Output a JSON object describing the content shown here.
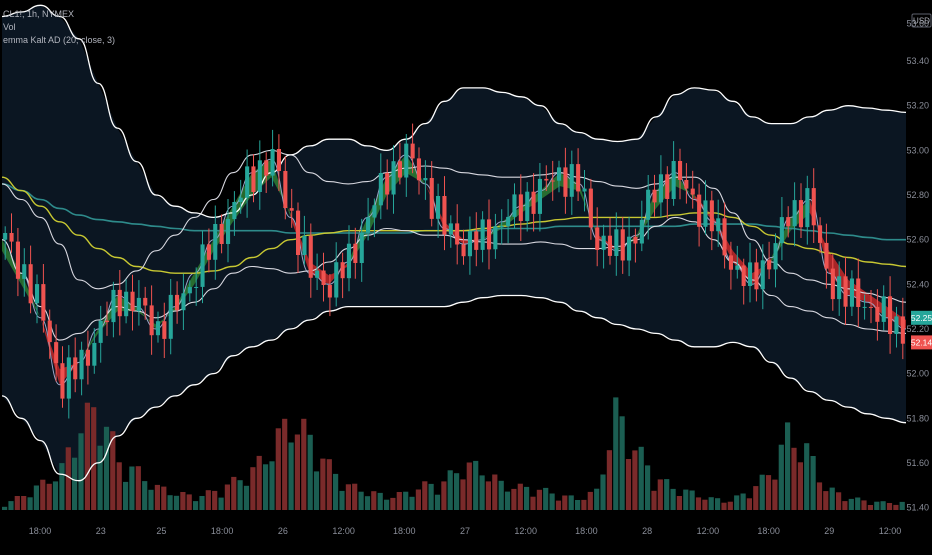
{
  "chart_data": {
    "type": "candlestick",
    "legend": {
      "symbol": "CL1!, 1h, NYMEX",
      "volume": "Vol",
      "indicator": "emma Kalt AD (20, close, 3)"
    },
    "y_axis": {
      "unit_label": "USD",
      "ticks": [
        "53.60",
        "53.40",
        "53.20",
        "53.00",
        "52.80",
        "52.60",
        "52.40",
        "52.20",
        "52.00",
        "51.80",
        "51.60",
        "51.40"
      ],
      "range": [
        51.38,
        53.62
      ]
    },
    "price_badges": [
      {
        "value": "52.25",
        "color": "#26a69a"
      },
      {
        "value": "52.14",
        "color": "#ef5350"
      }
    ],
    "x_axis": {
      "ticks": [
        "18:00",
        "23",
        "25",
        "18:00",
        "26",
        "12:00",
        "18:00",
        "27",
        "12:00",
        "18:00",
        "28",
        "12:00",
        "18:00",
        "29",
        "12:00"
      ]
    },
    "grid": false,
    "colors": {
      "up": "#26a69a",
      "down": "#ef5350",
      "band": "#ffffff",
      "ma_yellow": "#c8c832",
      "ma_teal": "#2e8b8b",
      "ribbon_up": "#2e7d32",
      "ribbon_down": "#c62828"
    },
    "series": [
      {
        "name": "upper band",
        "values": [
          53.6,
          53.62,
          53.65,
          53.6,
          53.5,
          53.3,
          53.1,
          52.95,
          52.8,
          52.75,
          52.72,
          52.7,
          52.72,
          52.8,
          52.9,
          52.98,
          53.02,
          53.05,
          53.05,
          53.02,
          53.0,
          53.05,
          53.12,
          53.22,
          53.28,
          53.28,
          53.26,
          53.24,
          53.2,
          53.12,
          53.08,
          53.05,
          53.04,
          53.05,
          53.15,
          53.25,
          53.28,
          53.27,
          53.22,
          53.15,
          53.12,
          53.12,
          53.15,
          53.18,
          53.2,
          53.19,
          53.18,
          53.17
        ]
      },
      {
        "name": "lower band",
        "values": [
          51.9,
          51.8,
          51.7,
          51.55,
          51.52,
          51.6,
          51.72,
          51.8,
          51.85,
          51.9,
          51.95,
          52.0,
          52.08,
          52.12,
          52.15,
          52.2,
          52.24,
          52.28,
          52.3,
          52.3,
          52.3,
          52.3,
          52.3,
          52.3,
          52.32,
          52.34,
          52.35,
          52.35,
          52.34,
          52.32,
          52.28,
          52.25,
          52.22,
          52.2,
          52.18,
          52.15,
          52.12,
          52.12,
          52.14,
          52.12,
          52.05,
          51.98,
          51.92,
          51.88,
          51.85,
          51.82,
          51.8,
          51.78
        ]
      },
      {
        "name": "inner upper",
        "values": [
          52.85,
          52.78,
          52.7,
          52.58,
          52.42,
          52.38,
          52.4,
          52.46,
          52.55,
          52.62,
          52.7,
          52.78,
          52.9,
          52.98,
          53.0,
          52.98,
          52.9,
          52.86,
          52.85,
          52.86,
          52.9,
          52.92,
          52.93,
          52.92,
          52.9,
          52.89,
          52.88,
          52.88,
          52.89,
          52.9,
          52.88,
          52.86,
          52.84,
          52.83,
          52.85,
          52.88,
          52.88,
          52.83,
          52.72,
          52.6,
          52.5,
          52.45,
          52.42,
          52.4,
          52.38,
          52.36,
          52.34,
          52.32
        ]
      },
      {
        "name": "inner lower",
        "values": [
          52.6,
          52.45,
          52.3,
          52.15,
          52.18,
          52.24,
          52.3,
          52.28,
          52.25,
          52.28,
          52.32,
          52.38,
          52.45,
          52.48,
          52.47,
          52.45,
          52.46,
          52.5,
          52.56,
          52.62,
          52.65,
          52.64,
          52.62,
          52.62,
          52.6,
          52.59,
          52.58,
          52.58,
          52.59,
          52.58,
          52.56,
          52.56,
          52.57,
          52.6,
          52.66,
          52.7,
          52.68,
          52.6,
          52.5,
          52.42,
          52.35,
          52.3,
          52.28,
          52.25,
          52.22,
          52.2,
          52.19,
          52.18
        ]
      },
      {
        "name": "ma yellow",
        "values": [
          52.88,
          52.82,
          52.75,
          52.68,
          52.62,
          52.56,
          52.52,
          52.48,
          52.46,
          52.45,
          52.45,
          52.46,
          52.48,
          52.52,
          52.56,
          52.6,
          52.62,
          52.63,
          52.64,
          52.64,
          52.64,
          52.64,
          52.64,
          52.64,
          52.64,
          52.65,
          52.66,
          52.67,
          52.68,
          52.69,
          52.7,
          52.7,
          52.7,
          52.7,
          52.7,
          52.71,
          52.72,
          52.72,
          52.7,
          52.66,
          52.62,
          52.58,
          52.56,
          52.54,
          52.52,
          52.5,
          52.49,
          52.48
        ]
      },
      {
        "name": "ma teal",
        "values": [
          52.85,
          52.82,
          52.78,
          52.74,
          52.71,
          52.69,
          52.68,
          52.67,
          52.66,
          52.65,
          52.64,
          52.64,
          52.64,
          52.64,
          52.64,
          52.63,
          52.63,
          52.63,
          52.63,
          52.63,
          52.63,
          52.63,
          52.64,
          52.64,
          52.64,
          52.64,
          52.65,
          52.65,
          52.65,
          52.66,
          52.66,
          52.66,
          52.66,
          52.66,
          52.66,
          52.66,
          52.67,
          52.67,
          52.67,
          52.67,
          52.66,
          52.65,
          52.64,
          52.63,
          52.62,
          52.61,
          52.6,
          52.6
        ]
      },
      {
        "name": "ribbon fast",
        "values": [
          52.6,
          52.45,
          52.25,
          51.95,
          52.05,
          52.2,
          52.35,
          52.3,
          52.2,
          52.3,
          52.45,
          52.6,
          52.75,
          52.9,
          52.96,
          52.7,
          52.45,
          52.4,
          52.5,
          52.7,
          52.88,
          52.98,
          52.85,
          52.65,
          52.58,
          52.6,
          52.68,
          52.75,
          52.82,
          52.9,
          52.85,
          52.6,
          52.55,
          52.62,
          52.82,
          52.9,
          52.78,
          52.68,
          52.5,
          52.4,
          52.52,
          52.7,
          52.78,
          52.45,
          52.35,
          52.32,
          52.25,
          52.2
        ]
      },
      {
        "name": "ribbon slow",
        "values": [
          52.55,
          52.4,
          52.25,
          52.02,
          52.05,
          52.18,
          52.28,
          52.28,
          52.22,
          52.28,
          52.4,
          52.55,
          52.68,
          52.8,
          52.88,
          52.72,
          52.5,
          52.44,
          52.48,
          52.62,
          52.8,
          52.9,
          52.85,
          52.68,
          52.6,
          52.6,
          52.65,
          52.72,
          52.78,
          52.84,
          52.82,
          52.62,
          52.56,
          52.6,
          52.74,
          52.84,
          52.8,
          52.7,
          52.55,
          52.45,
          52.5,
          52.64,
          52.72,
          52.55,
          52.42,
          52.36,
          52.3,
          52.24
        ]
      },
      {
        "name": "volume",
        "values": [
          3,
          8,
          14,
          22,
          46,
          55,
          26,
          20,
          12,
          9,
          7,
          10,
          15,
          21,
          33,
          49,
          38,
          23,
          13,
          10,
          7,
          9,
          13,
          15,
          24,
          22,
          14,
          12,
          11,
          8,
          6,
          10,
          52,
          34,
          18,
          12,
          9,
          6,
          5,
          10,
          19,
          40,
          32,
          12,
          7,
          5,
          4,
          4
        ]
      }
    ]
  }
}
